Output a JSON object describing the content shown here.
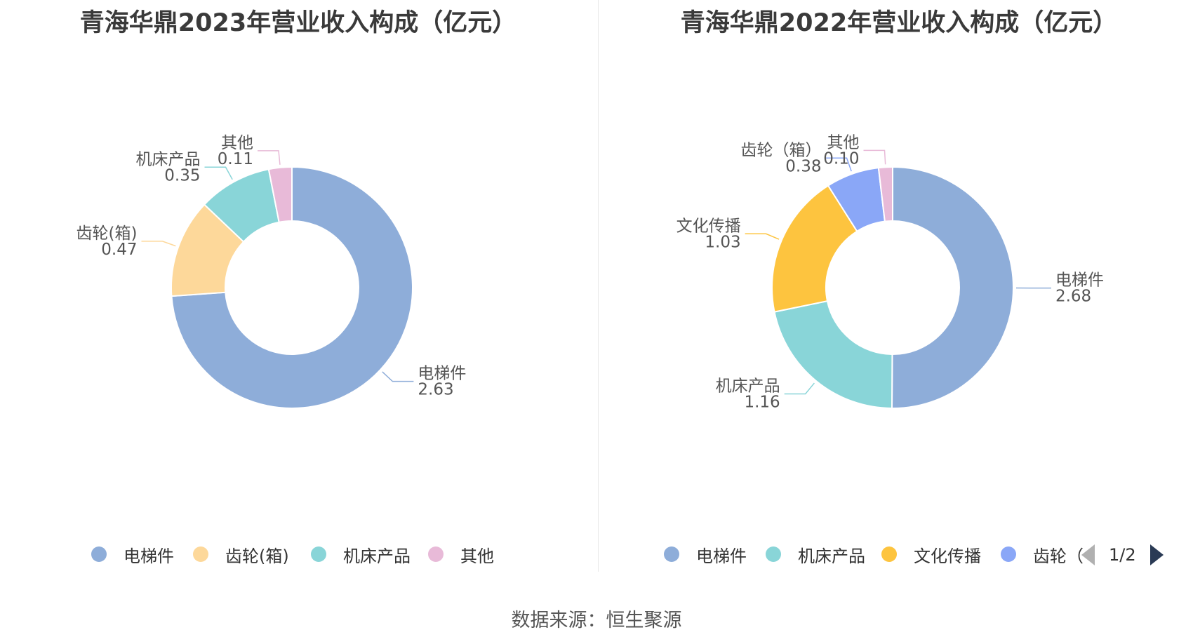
{
  "source": "数据来源：恒生聚源",
  "pager": {
    "text": "1/2"
  },
  "chart_data": [
    {
      "type": "pie",
      "title": "青海华鼎2023年营业收入构成（亿元）",
      "donut": true,
      "legend_position": "bottom",
      "slices": [
        {
          "name": "电梯件",
          "label": "电梯件",
          "value": 2.63,
          "value_label": "2.63",
          "color": "#8eadd9"
        },
        {
          "name": "齿轮(箱)",
          "label": "齿轮(箱)",
          "value": 0.47,
          "value_label": "0.47",
          "color": "#fdd89a"
        },
        {
          "name": "机床产品",
          "label": "机床产品",
          "value": 0.35,
          "value_label": "0.35",
          "color": "#89d5d8"
        },
        {
          "name": "其他",
          "label": "其他",
          "value": 0.11,
          "value_label": "0.11",
          "color": "#e8bad8"
        }
      ],
      "legend": [
        "电梯件",
        "齿轮(箱)",
        "机床产品",
        "其他"
      ]
    },
    {
      "type": "pie",
      "title": "青海华鼎2022年营业收入构成（亿元）",
      "donut": true,
      "legend_position": "bottom",
      "slices": [
        {
          "name": "电梯件",
          "label": "电梯件",
          "value": 2.68,
          "value_label": "2.68",
          "color": "#8eadd9"
        },
        {
          "name": "机床产品",
          "label": "机床产品",
          "value": 1.16,
          "value_label": "1.16",
          "color": "#89d5d8"
        },
        {
          "name": "文化传播",
          "label": "文化传播",
          "value": 1.03,
          "value_label": "1.03",
          "color": "#fdc43f"
        },
        {
          "name": "齿轮（箱）",
          "label": "齿轮（箱）",
          "value": 0.38,
          "value_label": "0.38",
          "color": "#8aa7f7"
        },
        {
          "name": "其他",
          "label": "其他",
          "value": 0.1,
          "value_label": "0.10",
          "color": "#e8bad8"
        }
      ],
      "legend": [
        "电梯件",
        "机床产品",
        "文化传播",
        "齿轮（"
      ]
    }
  ]
}
